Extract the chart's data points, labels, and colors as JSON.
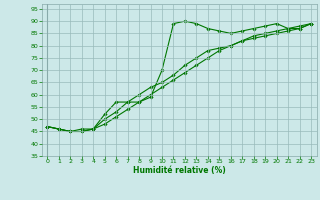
{
  "xlabel": "Humidité relative (%)",
  "xlim": [
    -0.5,
    23.5
  ],
  "ylim": [
    35,
    97
  ],
  "yticks": [
    35,
    40,
    45,
    50,
    55,
    60,
    65,
    70,
    75,
    80,
    85,
    90,
    95
  ],
  "xticks": [
    0,
    1,
    2,
    3,
    4,
    5,
    6,
    7,
    8,
    9,
    10,
    11,
    12,
    13,
    14,
    15,
    16,
    17,
    18,
    19,
    20,
    21,
    22,
    23
  ],
  "bg_color": "#cce8e8",
  "line_color": "#007700",
  "grid_color": "#99bbbb",
  "line1": [
    47,
    46,
    45,
    45,
    46,
    52,
    57,
    57,
    57,
    59,
    70,
    89,
    90,
    89,
    87,
    86,
    85,
    86,
    87,
    88,
    89,
    87,
    87,
    89
  ],
  "line2": [
    47,
    46,
    45,
    46,
    46,
    50,
    53,
    57,
    60,
    63,
    65,
    68,
    72,
    75,
    78,
    79,
    80,
    82,
    83,
    84,
    85,
    86,
    87,
    89
  ],
  "line3": [
    47,
    46,
    45,
    45,
    46,
    48,
    51,
    54,
    57,
    60,
    63,
    66,
    69,
    72,
    75,
    78,
    80,
    82,
    84,
    85,
    86,
    87,
    88,
    89
  ]
}
